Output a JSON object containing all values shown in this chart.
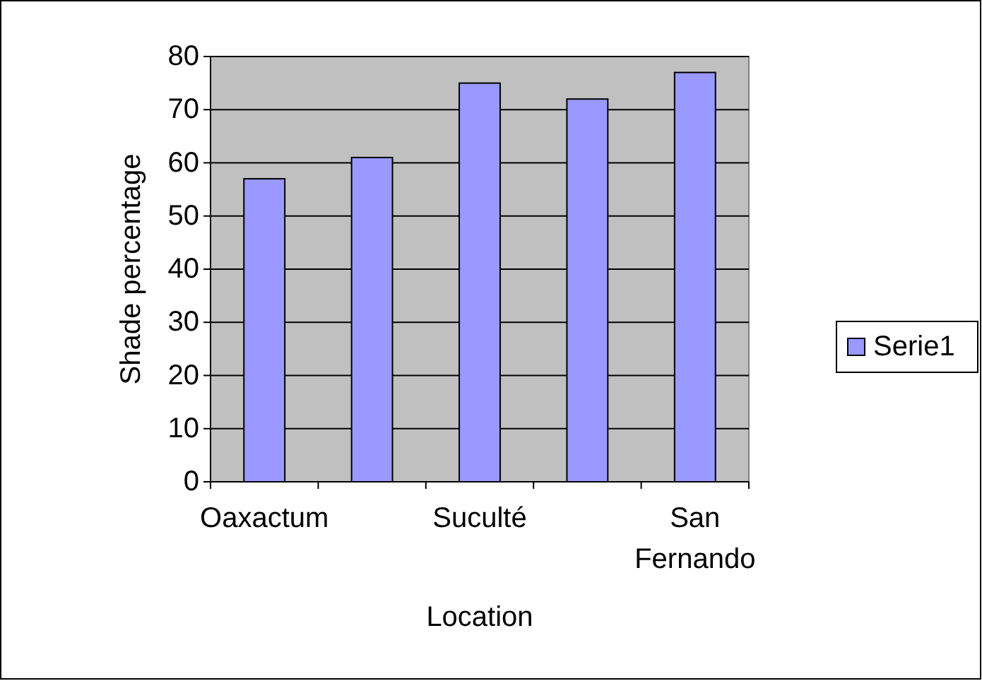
{
  "chart_data": {
    "type": "bar",
    "xlabel": "Location",
    "ylabel": "Shade percentage",
    "categories": [
      "Oaxactum",
      null,
      "Suculté",
      null,
      "San Fernando"
    ],
    "series": [
      {
        "name": "Serie1",
        "color": "#9999ff",
        "values": [
          57,
          61,
          75,
          72,
          77
        ]
      }
    ],
    "ylim": [
      0,
      80
    ],
    "yticks": [
      0,
      10,
      20,
      30,
      40,
      50,
      60,
      70,
      80
    ],
    "grid": "y",
    "legend": "right"
  }
}
